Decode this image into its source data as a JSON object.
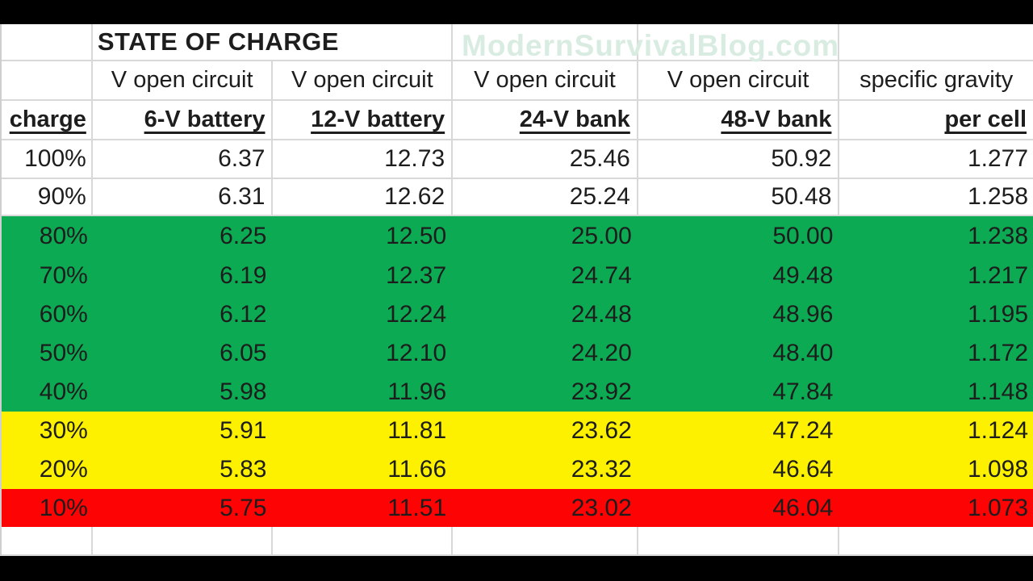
{
  "title": "STATE OF CHARGE",
  "watermark": "ModernSurvivalBlog.com",
  "table": {
    "unit_headers": [
      "V open circuit",
      "V open circuit",
      "V open circuit",
      "V open circuit",
      "specific gravity"
    ],
    "name_headers": [
      "charge",
      "6-V battery",
      "12-V battery",
      "24-V bank",
      "48-V bank",
      "per cell"
    ],
    "rows": [
      {
        "charge": "100%",
        "values": [
          "6.37",
          "12.73",
          "25.46",
          "50.92",
          "1.277"
        ],
        "band": "white"
      },
      {
        "charge": "90%",
        "values": [
          "6.31",
          "12.62",
          "25.24",
          "50.48",
          "1.258"
        ],
        "band": "white"
      },
      {
        "charge": "80%",
        "values": [
          "6.25",
          "12.50",
          "25.00",
          "50.00",
          "1.238"
        ],
        "band": "green"
      },
      {
        "charge": "70%",
        "values": [
          "6.19",
          "12.37",
          "24.74",
          "49.48",
          "1.217"
        ],
        "band": "green"
      },
      {
        "charge": "60%",
        "values": [
          "6.12",
          "12.24",
          "24.48",
          "48.96",
          "1.195"
        ],
        "band": "green"
      },
      {
        "charge": "50%",
        "values": [
          "6.05",
          "12.10",
          "24.20",
          "48.40",
          "1.172"
        ],
        "band": "green"
      },
      {
        "charge": "40%",
        "values": [
          "5.98",
          "11.96",
          "23.92",
          "47.84",
          "1.148"
        ],
        "band": "green"
      },
      {
        "charge": "30%",
        "values": [
          "5.91",
          "11.81",
          "23.62",
          "47.24",
          "1.124"
        ],
        "band": "yellow"
      },
      {
        "charge": "20%",
        "values": [
          "5.83",
          "11.66",
          "23.32",
          "46.64",
          "1.098"
        ],
        "band": "yellow"
      },
      {
        "charge": "10%",
        "values": [
          "5.75",
          "11.51",
          "23.02",
          "46.04",
          "1.073"
        ],
        "band": "red"
      }
    ]
  },
  "colors": {
    "band_green": "#0caa52",
    "band_yellow": "#fdf100",
    "band_red": "#fe0303",
    "watermark_text": "#d9ece1",
    "gridline": "#d8d8d8",
    "text": "#1d1d1d",
    "letterbox": "#000000"
  },
  "chart_data": {
    "type": "table",
    "title": "STATE OF CHARGE",
    "columns": [
      "charge",
      "V open circuit 6-V battery",
      "V open circuit 12-V battery",
      "V open circuit 24-V bank",
      "V open circuit 48-V bank",
      "specific gravity per cell"
    ],
    "rows": [
      [
        "100%",
        6.37,
        12.73,
        25.46,
        50.92,
        1.277
      ],
      [
        "90%",
        6.31,
        12.62,
        25.24,
        50.48,
        1.258
      ],
      [
        "80%",
        6.25,
        12.5,
        25.0,
        50.0,
        1.238
      ],
      [
        "70%",
        6.19,
        12.37,
        24.74,
        49.48,
        1.217
      ],
      [
        "60%",
        6.12,
        12.24,
        24.48,
        48.96,
        1.195
      ],
      [
        "50%",
        6.05,
        12.1,
        24.2,
        48.4,
        1.172
      ],
      [
        "40%",
        5.98,
        11.96,
        23.92,
        47.84,
        1.148
      ],
      [
        "30%",
        5.91,
        11.81,
        23.62,
        47.24,
        1.124
      ],
      [
        "20%",
        5.83,
        11.66,
        23.32,
        46.64,
        1.098
      ],
      [
        "10%",
        5.75,
        11.51,
        23.02,
        46.04,
        1.073
      ]
    ],
    "row_band_colors": [
      "white",
      "white",
      "green",
      "green",
      "green",
      "green",
      "green",
      "yellow",
      "yellow",
      "red"
    ],
    "notes_layout": "green = 40-80% charge band, yellow = 20-30%, red = 10%; gridlines only on white rows"
  }
}
